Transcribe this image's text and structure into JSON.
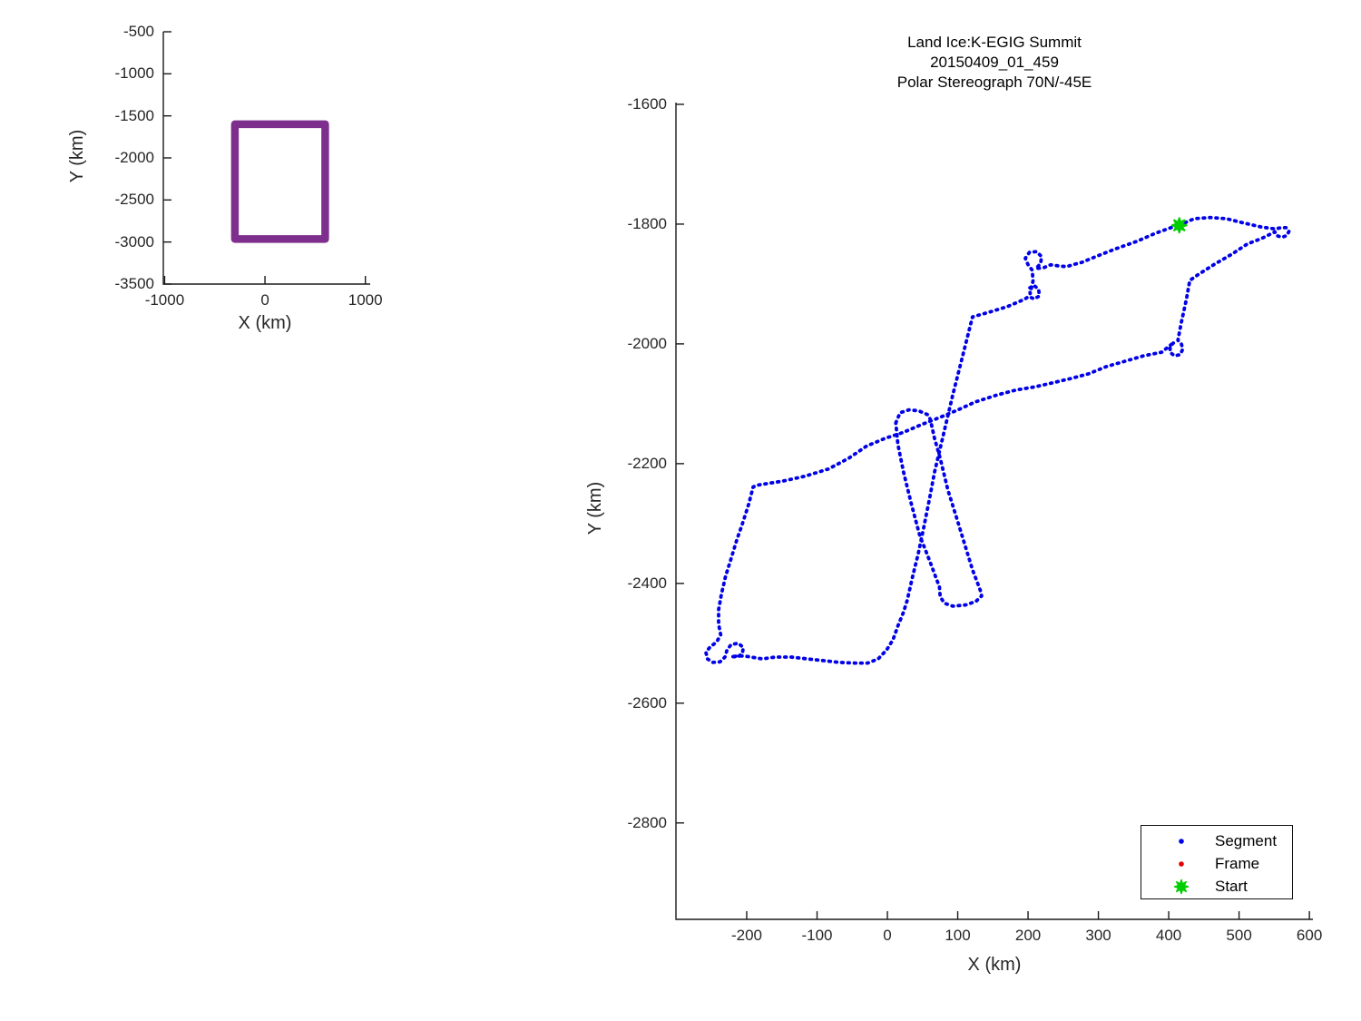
{
  "figure": {
    "background": "#ffffff",
    "axis_color": "#1a1a1a",
    "tick_label_color": "#262626"
  },
  "chart_data": [
    {
      "id": "overview",
      "type": "line",
      "xlabel": "X (km)",
      "ylabel": "Y (km)",
      "xticks": [
        -1000,
        0,
        1000
      ],
      "yticks": [
        -500,
        -1000,
        -1500,
        -2000,
        -2500,
        -3000,
        -3500
      ],
      "xlim": [
        -1013,
        1048
      ],
      "ylim": [
        -500,
        -3500
      ],
      "grid": false,
      "series": [
        {
          "name": "flight-extent-box",
          "color": "#7E2F8E",
          "line_width": 8.5,
          "style": "solid",
          "points": [
            [
              -300,
              -1600
            ],
            [
              600,
              -1600
            ],
            [
              600,
              -2965
            ],
            [
              -300,
              -2965
            ],
            [
              -300,
              -1600
            ],
            [
              -300,
              -1640
            ]
          ]
        }
      ]
    },
    {
      "id": "main",
      "type": "scatter",
      "title_lines": [
        "Land Ice:K-EGIG Summit",
        "20150409_01_459",
        "Polar Stereograph 70N/-45E"
      ],
      "xlabel": "X (km)",
      "ylabel": "Y (km)",
      "xticks": [
        -200,
        -100,
        0,
        100,
        200,
        300,
        400,
        500,
        600
      ],
      "yticks": [
        -1600,
        -1800,
        -2000,
        -2200,
        -2400,
        -2600,
        -2800
      ],
      "xlim": [
        -300.6,
        605
      ],
      "ylim": [
        -1597,
        -2961
      ],
      "grid": false,
      "legend_position": "lower-right",
      "legend": [
        {
          "label": "Segment",
          "marker": "dot",
          "color": "#0000E8"
        },
        {
          "label": "Frame",
          "marker": "dot",
          "color": "#E00000"
        },
        {
          "label": "Start",
          "marker": "star",
          "color": "#00CE00"
        }
      ],
      "start_marker": {
        "x": 415,
        "y": -1802,
        "color": "#00CE00",
        "size": 8,
        "shape": "star"
      },
      "series": [
        {
          "name": "Segment",
          "color": "#0000E8",
          "style": "dotted",
          "line_width": 3.8,
          "points": [
            [
              415,
              -1802
            ],
            [
              436,
              -1791
            ],
            [
              459,
              -1789
            ],
            [
              482,
              -1791
            ],
            [
              506,
              -1798
            ],
            [
              532,
              -1805
            ],
            [
              551,
              -1808
            ],
            [
              560,
              -1806
            ],
            [
              567,
              -1806
            ],
            [
              571,
              -1812
            ],
            [
              568,
              -1819
            ],
            [
              561,
              -1822
            ],
            [
              553,
              -1819
            ],
            [
              551,
              -1813
            ],
            [
              532,
              -1824
            ],
            [
              512,
              -1833
            ],
            [
              490,
              -1850
            ],
            [
              465,
              -1867
            ],
            [
              441,
              -1885
            ],
            [
              430,
              -1894
            ],
            [
              425,
              -1926
            ],
            [
              418,
              -1964
            ],
            [
              413,
              -1994
            ],
            [
              418,
              -2000
            ],
            [
              420,
              -2009
            ],
            [
              416,
              -2018
            ],
            [
              408,
              -2020
            ],
            [
              402,
              -2014
            ],
            [
              402,
              -2004
            ],
            [
              408,
              -1997
            ],
            [
              390,
              -2014
            ],
            [
              364,
              -2020
            ],
            [
              338,
              -2029
            ],
            [
              311,
              -2038
            ],
            [
              286,
              -2050
            ],
            [
              260,
              -2058
            ],
            [
              235,
              -2065
            ],
            [
              209,
              -2072
            ],
            [
              183,
              -2077
            ],
            [
              157,
              -2085
            ],
            [
              125,
              -2097
            ],
            [
              99,
              -2111
            ],
            [
              74,
              -2123
            ],
            [
              48,
              -2135
            ],
            [
              22,
              -2148
            ],
            [
              -4,
              -2158
            ],
            [
              -30,
              -2171
            ],
            [
              -55,
              -2191
            ],
            [
              -84,
              -2209
            ],
            [
              -117,
              -2221
            ],
            [
              -148,
              -2229
            ],
            [
              -169,
              -2233
            ],
            [
              -185,
              -2236
            ],
            [
              -191,
              -2239
            ],
            [
              -197,
              -2267
            ],
            [
              -206,
              -2300
            ],
            [
              -214,
              -2327
            ],
            [
              -222,
              -2358
            ],
            [
              -230,
              -2388
            ],
            [
              -236,
              -2418
            ],
            [
              -240,
              -2444
            ],
            [
              -240,
              -2468
            ],
            [
              -237,
              -2486
            ],
            [
              -243,
              -2498
            ],
            [
              -252,
              -2506
            ],
            [
              -258,
              -2515
            ],
            [
              -256,
              -2526
            ],
            [
              -248,
              -2532
            ],
            [
              -238,
              -2531
            ],
            [
              -231,
              -2523
            ],
            [
              -228,
              -2511
            ],
            [
              -222,
              -2502
            ],
            [
              -212,
              -2500
            ],
            [
              -205,
              -2507
            ],
            [
              -206,
              -2517
            ],
            [
              -213,
              -2523
            ],
            [
              -222,
              -2522
            ],
            [
              -204,
              -2521
            ],
            [
              -178,
              -2526
            ],
            [
              -159,
              -2523
            ],
            [
              -137,
              -2523
            ],
            [
              -114,
              -2526
            ],
            [
              -90,
              -2529
            ],
            [
              -68,
              -2532
            ],
            [
              -46,
              -2533
            ],
            [
              -28,
              -2533
            ],
            [
              -13,
              -2526
            ],
            [
              -1,
              -2511
            ],
            [
              8,
              -2494
            ],
            [
              15,
              -2471
            ],
            [
              23,
              -2448
            ],
            [
              28,
              -2429
            ],
            [
              31,
              -2414
            ],
            [
              36,
              -2388
            ],
            [
              44,
              -2350
            ],
            [
              52,
              -2305
            ],
            [
              61,
              -2252
            ],
            [
              67,
              -2214
            ],
            [
              80,
              -2150
            ],
            [
              93,
              -2085
            ],
            [
              107,
              -2020
            ],
            [
              121,
              -1955
            ],
            [
              145,
              -1947
            ],
            [
              170,
              -1938
            ],
            [
              194,
              -1926
            ],
            [
              201,
              -1921
            ],
            [
              209,
              -1925
            ],
            [
              216,
              -1920
            ],
            [
              215,
              -1909
            ],
            [
              208,
              -1902
            ],
            [
              202,
              -1907
            ],
            [
              203,
              -1916
            ],
            [
              207,
              -1895
            ],
            [
              206,
              -1877
            ],
            [
              200,
              -1868
            ],
            [
              196,
              -1857
            ],
            [
              202,
              -1847
            ],
            [
              212,
              -1846
            ],
            [
              219,
              -1854
            ],
            [
              218,
              -1866
            ],
            [
              211,
              -1874
            ],
            [
              222,
              -1873
            ],
            [
              232,
              -1868
            ],
            [
              244,
              -1870
            ],
            [
              255,
              -1871
            ],
            [
              266,
              -1867
            ],
            [
              276,
              -1864
            ],
            [
              299,
              -1853
            ],
            [
              325,
              -1841
            ],
            [
              354,
              -1829
            ],
            [
              382,
              -1815
            ],
            [
              403,
              -1806
            ],
            [
              415,
              -1802
            ]
          ]
        },
        {
          "name": "Segment-turn-loop",
          "color": "#0000E8",
          "style": "dotted",
          "line_width": 3.8,
          "points": [
            [
              12,
              -2132
            ],
            [
              18,
              -2115
            ],
            [
              31,
              -2110
            ],
            [
              45,
              -2112
            ],
            [
              57,
              -2118
            ],
            [
              61,
              -2126
            ],
            [
              67,
              -2158
            ],
            [
              75,
              -2191
            ],
            [
              86,
              -2244
            ],
            [
              98,
              -2289
            ],
            [
              110,
              -2335
            ],
            [
              121,
              -2377
            ],
            [
              132,
              -2411
            ],
            [
              134,
              -2421
            ],
            [
              126,
              -2430
            ],
            [
              111,
              -2436
            ],
            [
              93,
              -2438
            ],
            [
              81,
              -2433
            ],
            [
              75,
              -2422
            ],
            [
              74,
              -2406
            ],
            [
              61,
              -2365
            ],
            [
              46,
              -2320
            ],
            [
              34,
              -2267
            ],
            [
              23,
              -2214
            ],
            [
              15,
              -2168
            ],
            [
              12,
              -2132
            ]
          ]
        }
      ]
    }
  ]
}
